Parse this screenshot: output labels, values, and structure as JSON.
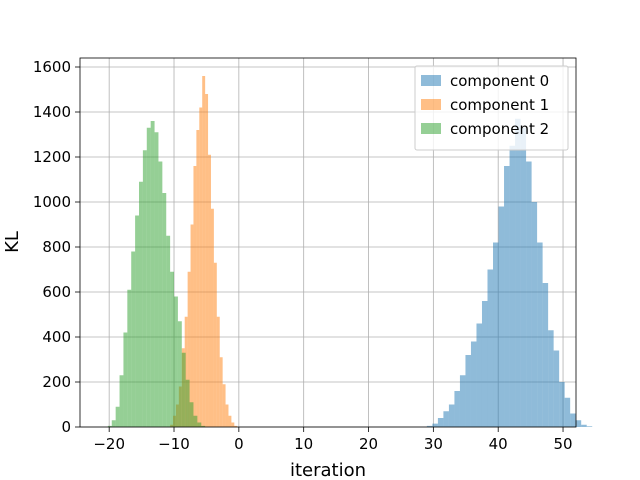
{
  "chart_data": {
    "type": "bar",
    "subtype": "histogram",
    "xlabel": "iteration",
    "ylabel": "KL",
    "xlim": [
      -24.5,
      52.0
    ],
    "ylim": [
      0,
      1640
    ],
    "xticks": [
      -20,
      -10,
      0,
      10,
      20,
      30,
      40,
      50
    ],
    "yticks": [
      0,
      200,
      400,
      600,
      800,
      1000,
      1200,
      1400,
      1600
    ],
    "grid": true,
    "legend_position": "top-right",
    "series": [
      {
        "name": "component 0",
        "color": "#1f77b4",
        "alpha": 0.5,
        "bin_start": 29.0,
        "bin_width": 0.85,
        "values": [
          5,
          15,
          40,
          70,
          100,
          160,
          230,
          320,
          380,
          460,
          560,
          700,
          820,
          980,
          1160,
          1250,
          1370,
          1330,
          1180,
          1000,
          820,
          640,
          430,
          340,
          200,
          130,
          60,
          30,
          10,
          3
        ]
      },
      {
        "name": "component 1",
        "color": "#ff7f0e",
        "alpha": 0.5,
        "bin_start": -10.6,
        "bin_width": 0.45,
        "values": [
          10,
          50,
          100,
          180,
          350,
          490,
          690,
          900,
          1160,
          1320,
          1420,
          1560,
          1480,
          1210,
          970,
          730,
          490,
          310,
          190,
          100,
          50,
          20,
          5
        ]
      },
      {
        "name": "component 2",
        "color": "#2ca02c",
        "alpha": 0.5,
        "bin_start": -20.2,
        "bin_width": 0.6,
        "values": [
          5,
          30,
          90,
          230,
          420,
          610,
          780,
          940,
          1090,
          1230,
          1330,
          1360,
          1310,
          1180,
          1040,
          850,
          690,
          580,
          470,
          330,
          210,
          110,
          50,
          20,
          5
        ]
      }
    ]
  }
}
